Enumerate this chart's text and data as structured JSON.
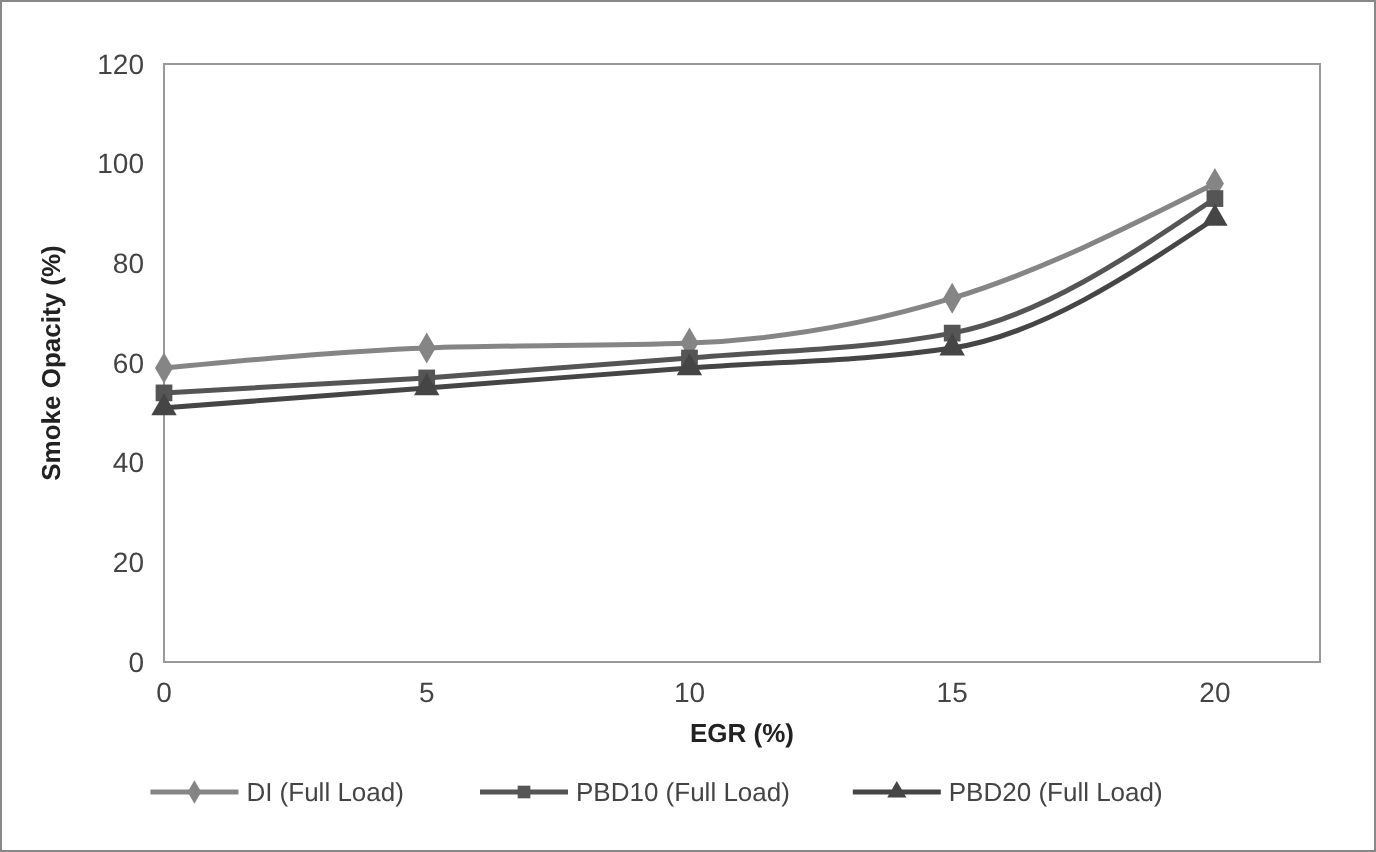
{
  "chart_data": {
    "type": "line",
    "xlabel": "EGR (%)",
    "ylabel": "Smoke Opacity (%)",
    "x": [
      0,
      5,
      10,
      15,
      20
    ],
    "xlim": [
      0,
      22
    ],
    "xticks": [
      0,
      5,
      10,
      15,
      20
    ],
    "ylim": [
      0,
      120
    ],
    "yticks": [
      0,
      20,
      40,
      60,
      80,
      100,
      120
    ],
    "grid": false,
    "legend": "bottom",
    "series": [
      {
        "name": "DI (Full Load)",
        "color": "#858585",
        "marker": "diamond",
        "values": [
          59,
          63,
          64,
          73,
          96
        ]
      },
      {
        "name": "PBD10 (Full Load)",
        "color": "#555555",
        "marker": "square",
        "values": [
          54,
          57,
          61,
          66,
          93
        ]
      },
      {
        "name": "PBD20 (Full Load)",
        "color": "#454545",
        "marker": "triangle",
        "values": [
          51,
          55,
          59,
          63,
          89
        ]
      }
    ]
  }
}
